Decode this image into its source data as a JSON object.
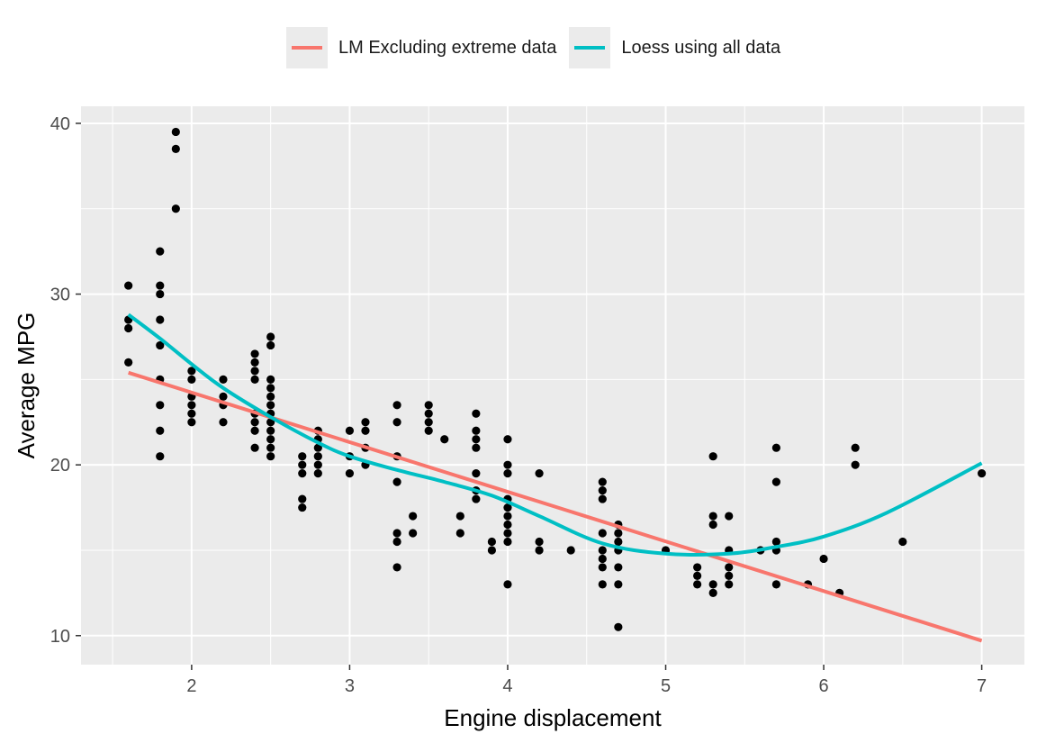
{
  "legend": [
    {
      "label": "LM Excluding extreme data",
      "color": "#f8766d"
    },
    {
      "label": "Loess using all data",
      "color": "#00bfc4"
    }
  ],
  "chart_data": {
    "type": "scatter",
    "xlabel": "Engine displacement",
    "ylabel": "Average MPG",
    "xlim": [
      1.3,
      7.27
    ],
    "ylim": [
      8.3,
      41.0
    ],
    "xticks": [
      2,
      3,
      4,
      5,
      6,
      7
    ],
    "yticks": [
      10,
      20,
      30,
      40
    ],
    "grid": true,
    "legend_position": "top",
    "points": [
      [
        1.6,
        30.5
      ],
      [
        1.6,
        28.5
      ],
      [
        1.6,
        28.0
      ],
      [
        1.6,
        26.0
      ],
      [
        1.8,
        32.5
      ],
      [
        1.8,
        30.5
      ],
      [
        1.8,
        30.0
      ],
      [
        1.8,
        28.5
      ],
      [
        1.8,
        27.0
      ],
      [
        1.8,
        25.0
      ],
      [
        1.8,
        23.5
      ],
      [
        1.8,
        22.0
      ],
      [
        1.8,
        20.5
      ],
      [
        1.9,
        39.5
      ],
      [
        1.9,
        38.5
      ],
      [
        1.9,
        35.0
      ],
      [
        2.0,
        25.5
      ],
      [
        2.0,
        25.0
      ],
      [
        2.0,
        24.0
      ],
      [
        2.0,
        23.5
      ],
      [
        2.0,
        23.0
      ],
      [
        2.0,
        22.5
      ],
      [
        2.2,
        25.0
      ],
      [
        2.2,
        24.0
      ],
      [
        2.2,
        23.5
      ],
      [
        2.2,
        22.5
      ],
      [
        2.4,
        26.5
      ],
      [
        2.4,
        26.0
      ],
      [
        2.4,
        25.5
      ],
      [
        2.4,
        25.0
      ],
      [
        2.4,
        23.0
      ],
      [
        2.4,
        22.5
      ],
      [
        2.4,
        22.0
      ],
      [
        2.4,
        21.0
      ],
      [
        2.5,
        27.5
      ],
      [
        2.5,
        27.0
      ],
      [
        2.5,
        25.0
      ],
      [
        2.5,
        24.5
      ],
      [
        2.5,
        24.0
      ],
      [
        2.5,
        23.5
      ],
      [
        2.5,
        23.0
      ],
      [
        2.5,
        22.5
      ],
      [
        2.5,
        22.0
      ],
      [
        2.5,
        21.5
      ],
      [
        2.5,
        21.0
      ],
      [
        2.5,
        20.5
      ],
      [
        2.7,
        20.5
      ],
      [
        2.7,
        20.0
      ],
      [
        2.7,
        19.5
      ],
      [
        2.7,
        18.0
      ],
      [
        2.7,
        17.5
      ],
      [
        2.8,
        22.0
      ],
      [
        2.8,
        21.5
      ],
      [
        2.8,
        21.0
      ],
      [
        2.8,
        20.5
      ],
      [
        2.8,
        20.0
      ],
      [
        2.8,
        19.5
      ],
      [
        3.0,
        22.0
      ],
      [
        3.0,
        20.5
      ],
      [
        3.0,
        19.5
      ],
      [
        3.1,
        22.5
      ],
      [
        3.1,
        22.0
      ],
      [
        3.1,
        21.0
      ],
      [
        3.1,
        20.0
      ],
      [
        3.3,
        23.5
      ],
      [
        3.3,
        22.5
      ],
      [
        3.3,
        20.5
      ],
      [
        3.3,
        19.0
      ],
      [
        3.3,
        16.0
      ],
      [
        3.3,
        15.5
      ],
      [
        3.3,
        14.0
      ],
      [
        3.4,
        17.0
      ],
      [
        3.4,
        16.0
      ],
      [
        3.5,
        23.5
      ],
      [
        3.5,
        23.0
      ],
      [
        3.5,
        22.5
      ],
      [
        3.5,
        22.0
      ],
      [
        3.6,
        21.5
      ],
      [
        3.7,
        17.0
      ],
      [
        3.7,
        16.0
      ],
      [
        3.8,
        23.0
      ],
      [
        3.8,
        22.0
      ],
      [
        3.8,
        21.5
      ],
      [
        3.8,
        21.0
      ],
      [
        3.8,
        19.5
      ],
      [
        3.8,
        18.5
      ],
      [
        3.8,
        18.0
      ],
      [
        3.9,
        15.5
      ],
      [
        3.9,
        15.0
      ],
      [
        4.0,
        21.5
      ],
      [
        4.0,
        20.0
      ],
      [
        4.0,
        19.5
      ],
      [
        4.0,
        18.0
      ],
      [
        4.0,
        17.5
      ],
      [
        4.0,
        17.0
      ],
      [
        4.0,
        16.5
      ],
      [
        4.0,
        16.0
      ],
      [
        4.0,
        15.5
      ],
      [
        4.0,
        13.0
      ],
      [
        4.2,
        19.5
      ],
      [
        4.2,
        15.5
      ],
      [
        4.2,
        15.0
      ],
      [
        4.4,
        15.0
      ],
      [
        4.6,
        19.0
      ],
      [
        4.6,
        18.5
      ],
      [
        4.6,
        18.0
      ],
      [
        4.6,
        16.0
      ],
      [
        4.6,
        15.0
      ],
      [
        4.6,
        14.5
      ],
      [
        4.6,
        14.0
      ],
      [
        4.6,
        13.0
      ],
      [
        4.7,
        16.5
      ],
      [
        4.7,
        16.0
      ],
      [
        4.7,
        15.5
      ],
      [
        4.7,
        15.0
      ],
      [
        4.7,
        14.0
      ],
      [
        4.7,
        13.0
      ],
      [
        4.7,
        10.5
      ],
      [
        5.0,
        15.0
      ],
      [
        5.2,
        14.0
      ],
      [
        5.2,
        13.5
      ],
      [
        5.2,
        13.0
      ],
      [
        5.3,
        20.5
      ],
      [
        5.3,
        17.0
      ],
      [
        5.3,
        16.5
      ],
      [
        5.3,
        13.0
      ],
      [
        5.3,
        12.5
      ],
      [
        5.4,
        17.0
      ],
      [
        5.4,
        15.0
      ],
      [
        5.4,
        14.0
      ],
      [
        5.4,
        13.5
      ],
      [
        5.4,
        13.0
      ],
      [
        5.6,
        15.0
      ],
      [
        5.7,
        21.0
      ],
      [
        5.7,
        19.0
      ],
      [
        5.7,
        15.5
      ],
      [
        5.7,
        15.0
      ],
      [
        5.7,
        13.0
      ],
      [
        5.9,
        13.0
      ],
      [
        6.0,
        14.5
      ],
      [
        6.1,
        12.5
      ],
      [
        6.2,
        21.0
      ],
      [
        6.2,
        20.0
      ],
      [
        6.5,
        15.5
      ],
      [
        7.0,
        19.5
      ]
    ],
    "series": [
      {
        "name": "LM Excluding extreme data",
        "color": "#f8766d",
        "x": [
          1.6,
          7.0
        ],
        "y": [
          25.4,
          9.7
        ]
      },
      {
        "name": "Loess using all data",
        "color": "#00bfc4",
        "x": [
          1.6,
          1.8,
          2.0,
          2.2,
          2.5,
          2.8,
          3.0,
          3.3,
          3.6,
          3.9,
          4.2,
          4.6,
          5.0,
          5.4,
          5.7,
          6.0,
          6.4,
          7.0
        ],
        "y": [
          28.8,
          27.4,
          25.9,
          24.5,
          22.8,
          21.3,
          20.5,
          19.7,
          19.0,
          18.2,
          17.0,
          15.4,
          14.8,
          14.8,
          15.2,
          15.8,
          17.2,
          20.1
        ]
      }
    ]
  }
}
